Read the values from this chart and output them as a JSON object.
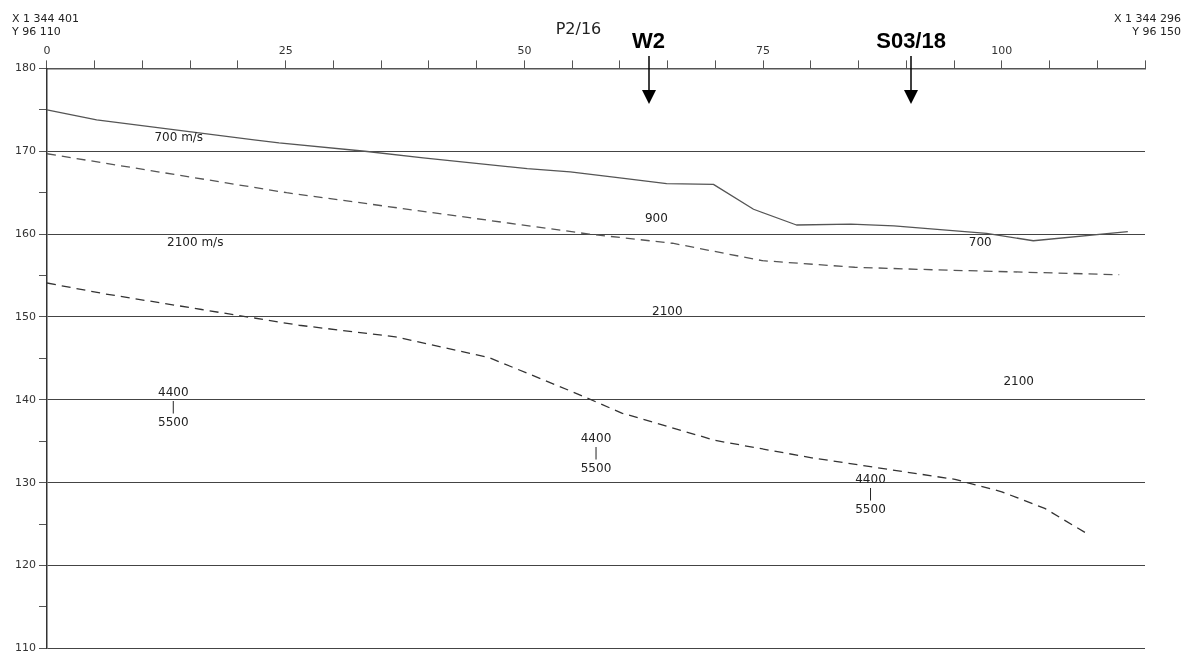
{
  "chart_data": {
    "type": "line",
    "title": "P2/16",
    "xlim": [
      0,
      115
    ],
    "xticks": [
      0,
      {
        "value": 5,
        "label": null
      },
      {
        "value": 10,
        "label": null
      },
      {
        "value": 15,
        "label": null
      },
      {
        "value": 20,
        "label": null
      },
      25,
      {
        "value": 30,
        "label": null
      },
      {
        "value": 35,
        "label": null
      },
      {
        "value": 40,
        "label": null
      },
      {
        "value": 45,
        "label": null
      },
      50,
      {
        "value": 55,
        "label": null
      },
      {
        "value": 60,
        "label": null
      },
      {
        "value": 65,
        "label": null
      },
      {
        "value": 70,
        "label": null
      },
      75,
      {
        "value": 80,
        "label": null
      },
      {
        "value": 85,
        "label": null
      },
      {
        "value": 90,
        "label": null
      },
      {
        "value": 95,
        "label": null
      },
      100,
      {
        "value": 105,
        "label": null
      },
      {
        "value": 110,
        "label": null
      },
      {
        "value": 115,
        "label": null
      }
    ],
    "ylim": [
      110,
      180
    ],
    "yticks": [
      110,
      {
        "value": 115,
        "label": null
      },
      120,
      {
        "value": 125,
        "label": null
      },
      130,
      {
        "value": 135,
        "label": null
      },
      140,
      {
        "value": 145,
        "label": null
      },
      150,
      {
        "value": 155,
        "label": null
      },
      160,
      {
        "value": 165,
        "label": null
      },
      170,
      {
        "value": 175,
        "label": null
      },
      180
    ],
    "grid": "y",
    "marker": "none",
    "legend": false,
    "series": [
      {
        "color": "#555555",
        "line_style": "solid",
        "x": [
          0,
          5.2,
          24.3,
          33.3,
          39.4,
          50.3,
          54.8,
          60,
          64.9,
          69.8,
          74,
          78.5,
          84.2,
          88.7,
          98.4,
          103.3,
          113.2
        ],
        "values": [
          175,
          173.8,
          171,
          170,
          169.2,
          167.9,
          167.5,
          166.8,
          166.1,
          166,
          163,
          161.1,
          161.2,
          161,
          160.1,
          159.2,
          160.3
        ]
      },
      {
        "color": "#555555",
        "line_style": "dashed",
        "x": [
          0,
          25.1,
          56.8,
          65.5,
          74.9,
          84.6,
          92.7,
          112.3
        ],
        "values": [
          169.7,
          165,
          160,
          158.9,
          156.8,
          156,
          155.7,
          155.1
        ]
      },
      {
        "color": "#333333",
        "line_style": "dashed",
        "x": [
          0,
          6,
          16.2,
          26.4,
          36.5,
          46.3,
          55.6,
          60.2,
          70,
          80.1,
          89.9,
          95.1,
          100,
          104.5,
          109
        ],
        "values": [
          154.1,
          152.8,
          150.9,
          149,
          147.6,
          145.1,
          140.7,
          138.4,
          135.1,
          133,
          131.3,
          130.4,
          128.9,
          126.9,
          123.8
        ]
      }
    ],
    "annotations": [
      "X 1 344 401\nY 96 110",
      "X 1 344 296\nY 96 150",
      "700 m/s",
      "2100 m/s",
      "900",
      "700",
      "2100",
      "2100",
      "4400\n|\n5500",
      "4400\n|\n5500",
      "4400\n|\n5500"
    ],
    "ref_lines": [
      {
        "axis": "x",
        "value": 63,
        "label": "W2"
      },
      {
        "axis": "x",
        "value": 90.5,
        "label": "S03/18"
      }
    ]
  }
}
